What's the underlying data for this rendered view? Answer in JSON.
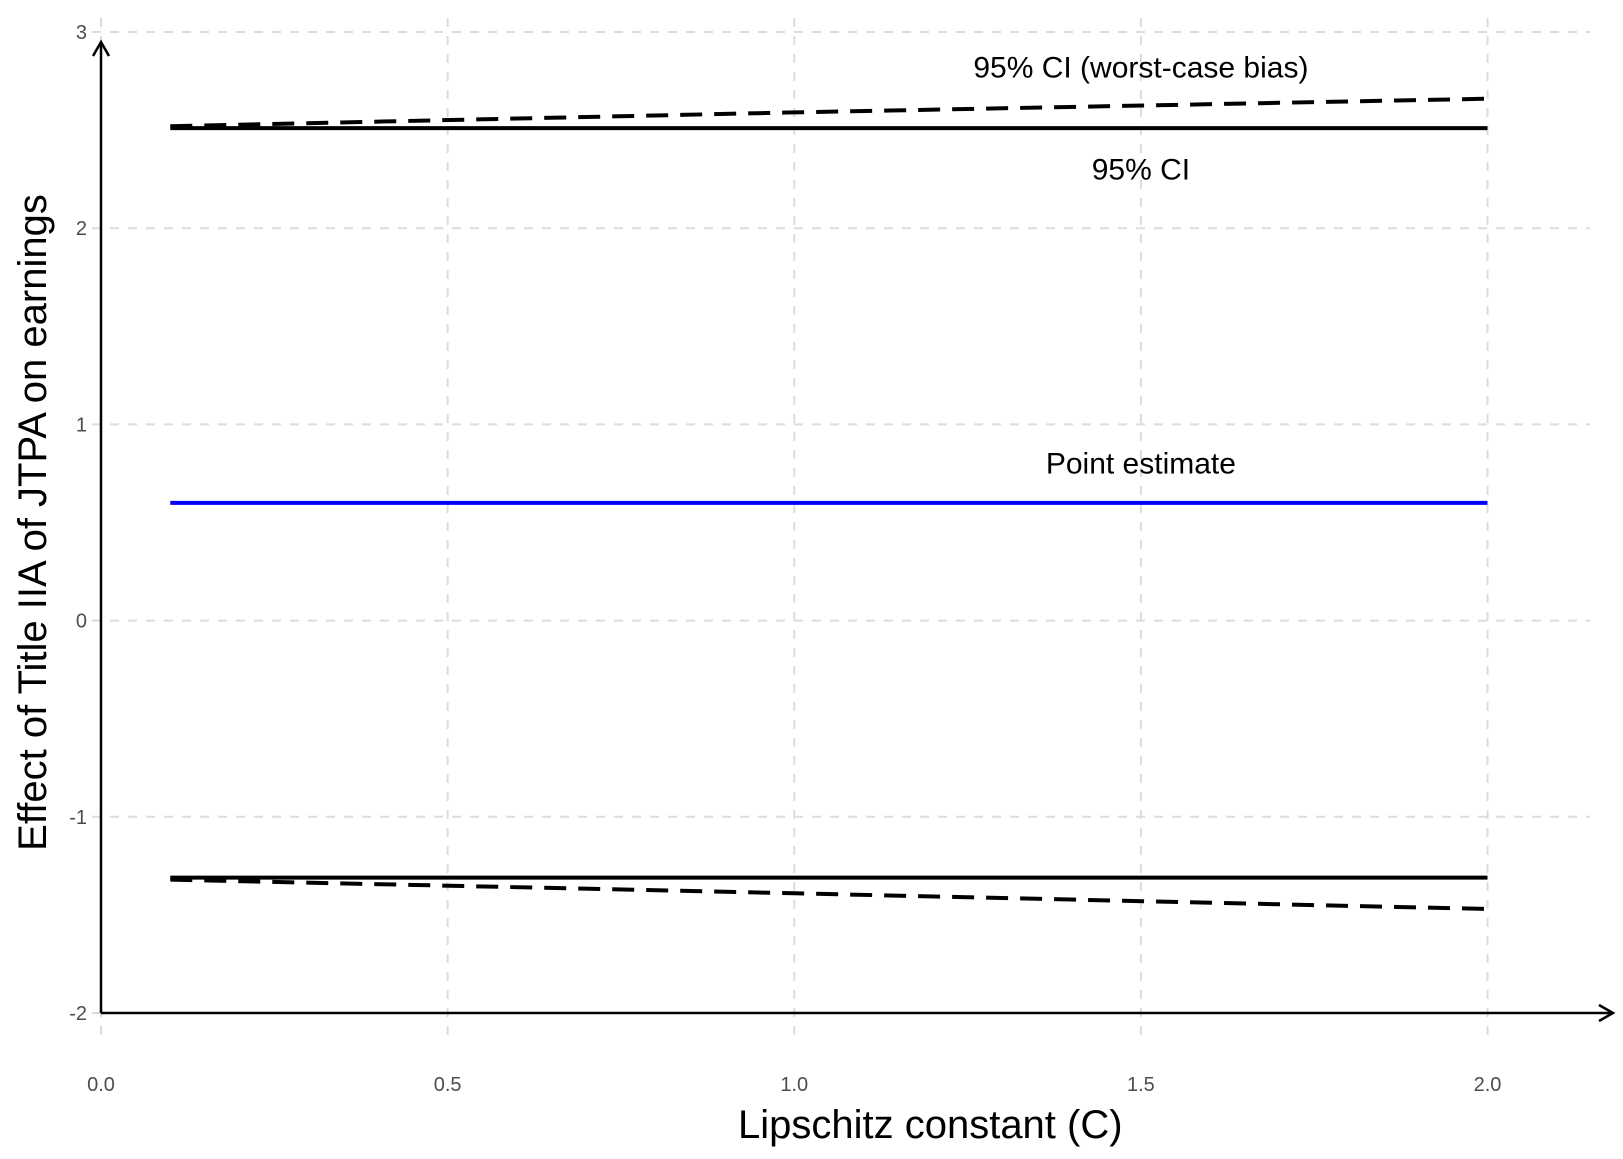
{
  "chart_data": {
    "type": "line",
    "xlabel": "Lipschitz constant (C)",
    "ylabel": "Effect of Title IIA of JTPA on earnings",
    "xlim": [
      0.0,
      2.08
    ],
    "ylim": [
      -2.0,
      3.0
    ],
    "x_ticks": [
      0.0,
      0.5,
      1.0,
      1.5,
      2.0
    ],
    "x_tick_labels": [
      "0.0",
      "0.5",
      "1.0",
      "1.5",
      "2.0"
    ],
    "y_ticks": [
      -2,
      -1,
      0,
      1,
      2,
      3
    ],
    "y_tick_labels": [
      "-2",
      "-1",
      "0",
      "1",
      "2",
      "3"
    ],
    "grid": true,
    "legend": "none",
    "series": [
      {
        "key": "ci-upper",
        "color": "#000000",
        "dash": "solid",
        "x": [
          0.1,
          2.0
        ],
        "y": [
          2.51,
          2.51
        ]
      },
      {
        "key": "ci-lower",
        "color": "#000000",
        "dash": "solid",
        "x": [
          0.1,
          2.0
        ],
        "y": [
          -1.31,
          -1.31
        ]
      },
      {
        "key": "worst-case-upper",
        "color": "#000000",
        "dash": "dashed",
        "x": [
          0.1,
          1.0,
          2.0
        ],
        "y": [
          2.52,
          2.59,
          2.66
        ]
      },
      {
        "key": "worst-case-lower",
        "color": "#000000",
        "dash": "dashed",
        "x": [
          0.1,
          1.0,
          2.0
        ],
        "y": [
          -1.32,
          -1.39,
          -1.47
        ]
      },
      {
        "key": "point-estimate",
        "color": "#0000ff",
        "dash": "solid",
        "x": [
          0.1,
          1.0,
          2.0
        ],
        "y": [
          0.6,
          0.6,
          0.6
        ]
      }
    ],
    "annotations": [
      {
        "text": "95% CI (worst-case bias)",
        "x": 1.5,
        "y": 2.82
      },
      {
        "text": "95% CI",
        "x": 1.5,
        "y": 2.3
      },
      {
        "text": "Point estimate",
        "x": 1.5,
        "y": 0.8
      }
    ]
  }
}
